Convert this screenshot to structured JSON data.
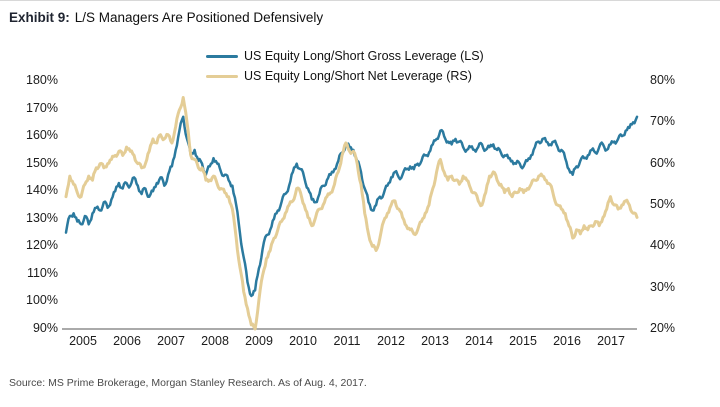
{
  "title": {
    "prefix": "Exhibit 9:",
    "text": "L/S Managers Are Positioned Defensively"
  },
  "source": "Source: MS Prime Brokerage, Morgan Stanley Research. As of Aug. 4, 2017.",
  "colors": {
    "gross_line": "#2B7A9F",
    "net_line": "#E4CD96",
    "axis_line": "#555555",
    "text": "#1a1a1a"
  },
  "chart_data": {
    "type": "line",
    "title": "Exhibit 9: L/S Managers Are Positioned Defensively",
    "x_unit": "year, monthly samples",
    "x_start": 2005.0,
    "x_step_years": 0.08333,
    "x_ticks": [
      "2005",
      "2006",
      "2007",
      "2008",
      "2009",
      "2010",
      "2011",
      "2012",
      "2013",
      "2014",
      "2015",
      "2016",
      "2017"
    ],
    "left_axis": {
      "min": 90,
      "max": 180,
      "tick_step": 10,
      "ticks": [
        "180%",
        "170%",
        "160%",
        "150%",
        "140%",
        "130%",
        "120%",
        "110%",
        "100%",
        "90%"
      ]
    },
    "right_axis": {
      "min": 20,
      "max": 80,
      "tick_step": 10,
      "ticks": [
        "80%",
        "70%",
        "60%",
        "50%",
        "40%",
        "30%",
        "20%"
      ]
    },
    "grid": false,
    "legend_position": "top-center",
    "series": [
      {
        "name": "US Equity Long/Short Gross Leverage (LS)",
        "axis": "left",
        "color": "#2B7A9F",
        "values": [
          125,
          131,
          132,
          129,
          128,
          131,
          128,
          132,
          134,
          133,
          136,
          134,
          137,
          140,
          143,
          141,
          143,
          142,
          145,
          142,
          139,
          141,
          138,
          140,
          143,
          145,
          142,
          146,
          149,
          155,
          162,
          167,
          159,
          153,
          155,
          151,
          150,
          146,
          149,
          152,
          150,
          147,
          146,
          144,
          142,
          135,
          125,
          116,
          107,
          102,
          104,
          112,
          119,
          124,
          126,
          130,
          133,
          136,
          139,
          142,
          147,
          150,
          148,
          145,
          141,
          137,
          136,
          139,
          142,
          144,
          146,
          148,
          151,
          154,
          157,
          156,
          155,
          151,
          147,
          141,
          136,
          133,
          135,
          138,
          139,
          142,
          145,
          147,
          145,
          146,
          148,
          149,
          148,
          150,
          151,
          153,
          154,
          157,
          159,
          162,
          160,
          158,
          157,
          159,
          158,
          156,
          155,
          156,
          155,
          156,
          157,
          155,
          156,
          157,
          155,
          154,
          153,
          152,
          151,
          150,
          150,
          149,
          151,
          153,
          156,
          158,
          159,
          158,
          157,
          158,
          156,
          155,
          152,
          148,
          146,
          149,
          151,
          152,
          153,
          155,
          154,
          156,
          157,
          155,
          157,
          158,
          159,
          160,
          162,
          163,
          165,
          167
        ]
      },
      {
        "name": "US Equity Long/Short Net Leverage (RS)",
        "axis": "right",
        "color": "#E4CD96",
        "values": [
          52,
          57,
          55,
          53,
          52,
          55,
          57,
          56,
          59,
          60,
          59,
          60,
          61,
          62,
          63,
          62,
          64,
          63,
          62,
          60,
          59,
          60,
          63,
          66,
          65,
          67,
          66,
          67,
          65,
          69,
          73,
          76,
          70,
          62,
          61,
          59,
          59,
          56,
          56,
          57,
          55,
          54,
          53,
          52,
          49,
          42,
          35,
          29,
          25,
          21,
          20,
          27,
          33,
          37,
          39,
          42,
          44,
          46,
          48,
          50,
          51,
          54,
          53,
          50,
          47,
          45,
          47,
          49,
          50,
          52,
          53,
          55,
          58,
          62,
          65,
          63,
          63,
          60,
          55,
          48,
          43,
          40,
          39,
          42,
          46,
          48,
          50,
          51,
          49,
          47,
          45,
          44,
          43,
          44,
          46,
          48,
          50,
          54,
          58,
          61,
          58,
          56,
          57,
          56,
          55,
          57,
          56,
          54,
          53,
          51,
          50,
          53,
          57,
          58,
          56,
          55,
          53,
          54,
          52,
          53,
          54,
          53,
          54,
          55,
          56,
          57,
          57,
          56,
          55,
          52,
          50,
          49,
          48,
          45,
          42,
          44,
          43,
          45,
          44,
          45,
          46,
          45,
          47,
          49,
          52,
          50,
          49,
          50,
          51,
          50,
          48,
          47
        ]
      }
    ]
  }
}
